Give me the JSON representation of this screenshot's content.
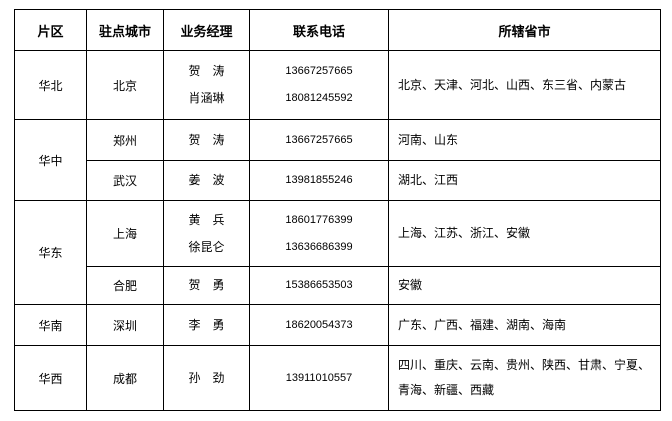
{
  "headers": [
    "片区",
    "驻点城市",
    "业务经理",
    "联系电话",
    "所辖省市"
  ],
  "regions": [
    {
      "name": "华北",
      "cities": [
        {
          "city": "北京",
          "managers": [
            "贺　涛",
            "肖涵琳"
          ],
          "phones": [
            "13667257665",
            "18081245592"
          ],
          "provinces": [
            "北京、天津、河北、山西、东三省、内蒙古"
          ]
        }
      ]
    },
    {
      "name": "华中",
      "cities": [
        {
          "city": "郑州",
          "managers": [
            "贺　涛"
          ],
          "phones": [
            "13667257665"
          ],
          "provinces": [
            "河南、山东"
          ]
        },
        {
          "city": "武汉",
          "managers": [
            "姜　波"
          ],
          "phones": [
            "13981855246"
          ],
          "provinces": [
            "湖北、江西"
          ]
        }
      ]
    },
    {
      "name": "华东",
      "cities": [
        {
          "city": "上海",
          "managers": [
            "黄　兵",
            "徐昆仑"
          ],
          "phones": [
            "18601776399",
            "13636686399"
          ],
          "provinces": [
            "上海、江苏、浙江、安徽"
          ]
        },
        {
          "city": "合肥",
          "managers": [
            "贺　勇"
          ],
          "phones": [
            "15386653503"
          ],
          "provinces": [
            "安徽"
          ]
        }
      ]
    },
    {
      "name": "华南",
      "cities": [
        {
          "city": "深圳",
          "managers": [
            "李　勇"
          ],
          "phones": [
            "18620054373"
          ],
          "provinces": [
            "广东、广西、福建、湖南、海南"
          ]
        }
      ]
    },
    {
      "name": "华西",
      "cities": [
        {
          "city": "成都",
          "managers": [
            "孙　劲"
          ],
          "phones": [
            "13911010557"
          ],
          "provinces": [
            "四川、重庆、云南、贵州、陕西、甘肃、宁夏、",
            "青海、新疆、西藏"
          ]
        }
      ]
    }
  ]
}
